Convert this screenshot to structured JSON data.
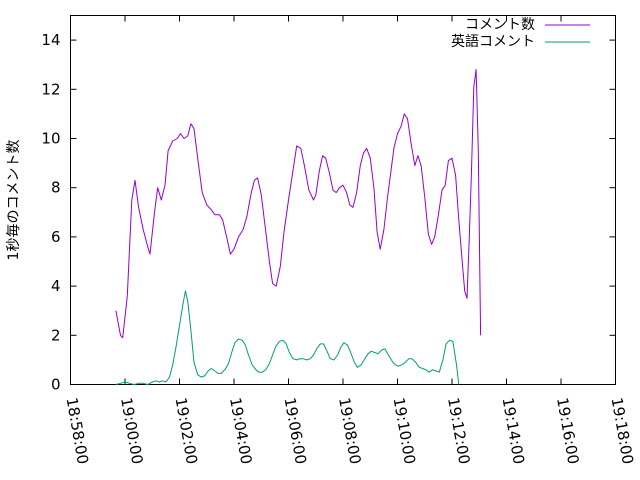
{
  "chart_data": {
    "type": "line",
    "title": "",
    "xlabel": "",
    "ylabel": "1秒毎のコメント数",
    "ylim": [
      0,
      15
    ],
    "y_ticks": [
      0,
      2,
      4,
      6,
      8,
      10,
      12,
      14
    ],
    "xlim": [
      "18:58:00",
      "19:18:00"
    ],
    "x_ticks": [
      "18:58:00",
      "19:00:00",
      "19:02:00",
      "19:04:00",
      "19:06:00",
      "19:08:00",
      "19:10:00",
      "19:12:00",
      "19:14:00",
      "19:16:00",
      "19:18:00"
    ],
    "grid": false,
    "legend_position": "top-right",
    "series": [
      {
        "name": "コメント数",
        "color": "#9400d3",
        "points": [
          [
            "18:59:40",
            3.0
          ],
          [
            "18:59:50",
            2.0
          ],
          [
            "18:59:55",
            1.9
          ],
          [
            "19:00:05",
            3.6
          ],
          [
            "19:00:15",
            7.5
          ],
          [
            "19:00:22",
            8.3
          ],
          [
            "19:00:30",
            7.2
          ],
          [
            "19:00:40",
            6.3
          ],
          [
            "19:00:50",
            5.6
          ],
          [
            "19:00:55",
            5.3
          ],
          [
            "19:01:05",
            7.0
          ],
          [
            "19:01:12",
            8.0
          ],
          [
            "19:01:20",
            7.5
          ],
          [
            "19:01:28",
            8.1
          ],
          [
            "19:01:35",
            9.5
          ],
          [
            "19:01:45",
            9.9
          ],
          [
            "19:01:55",
            10.0
          ],
          [
            "19:02:02",
            10.2
          ],
          [
            "19:02:10",
            10.0
          ],
          [
            "19:02:18",
            10.1
          ],
          [
            "19:02:25",
            10.6
          ],
          [
            "19:02:32",
            10.4
          ],
          [
            "19:02:40",
            9.2
          ],
          [
            "19:02:50",
            7.8
          ],
          [
            "19:03:00",
            7.3
          ],
          [
            "19:03:10",
            7.1
          ],
          [
            "19:03:18",
            6.9
          ],
          [
            "19:03:28",
            6.9
          ],
          [
            "19:03:35",
            6.7
          ],
          [
            "19:03:45",
            5.9
          ],
          [
            "19:03:52",
            5.3
          ],
          [
            "19:04:00",
            5.5
          ],
          [
            "19:04:10",
            6.0
          ],
          [
            "19:04:20",
            6.3
          ],
          [
            "19:04:28",
            6.8
          ],
          [
            "19:04:38",
            7.8
          ],
          [
            "19:04:45",
            8.3
          ],
          [
            "19:04:52",
            8.4
          ],
          [
            "19:05:00",
            7.7
          ],
          [
            "19:05:10",
            6.2
          ],
          [
            "19:05:18",
            5.0
          ],
          [
            "19:05:25",
            4.1
          ],
          [
            "19:05:33",
            4.0
          ],
          [
            "19:05:42",
            4.8
          ],
          [
            "19:05:50",
            6.2
          ],
          [
            "19:06:00",
            7.5
          ],
          [
            "19:06:10",
            8.7
          ],
          [
            "19:06:18",
            9.7
          ],
          [
            "19:06:27",
            9.6
          ],
          [
            "19:06:35",
            8.9
          ],
          [
            "19:06:45",
            7.9
          ],
          [
            "19:06:55",
            7.5
          ],
          [
            "19:07:00",
            7.7
          ],
          [
            "19:07:08",
            8.7
          ],
          [
            "19:07:15",
            9.3
          ],
          [
            "19:07:22",
            9.2
          ],
          [
            "19:07:30",
            8.6
          ],
          [
            "19:07:38",
            7.9
          ],
          [
            "19:07:45",
            7.8
          ],
          [
            "19:07:52",
            8.0
          ],
          [
            "19:08:00",
            8.1
          ],
          [
            "19:08:08",
            7.8
          ],
          [
            "19:08:15",
            7.3
          ],
          [
            "19:08:22",
            7.2
          ],
          [
            "19:08:30",
            7.8
          ],
          [
            "19:08:38",
            8.9
          ],
          [
            "19:08:45",
            9.4
          ],
          [
            "19:08:52",
            9.6
          ],
          [
            "19:09:00",
            9.2
          ],
          [
            "19:09:08",
            8.0
          ],
          [
            "19:09:15",
            6.2
          ],
          [
            "19:09:22",
            5.5
          ],
          [
            "19:09:30",
            6.3
          ],
          [
            "19:09:38",
            7.6
          ],
          [
            "19:09:45",
            8.6
          ],
          [
            "19:09:52",
            9.6
          ],
          [
            "19:10:00",
            10.2
          ],
          [
            "19:10:08",
            10.5
          ],
          [
            "19:10:15",
            11.0
          ],
          [
            "19:10:22",
            10.8
          ],
          [
            "19:10:30",
            9.8
          ],
          [
            "19:10:38",
            8.9
          ],
          [
            "19:10:45",
            9.3
          ],
          [
            "19:10:52",
            8.9
          ],
          [
            "19:11:00",
            7.6
          ],
          [
            "19:11:08",
            6.1
          ],
          [
            "19:11:15",
            5.7
          ],
          [
            "19:11:22",
            6.0
          ],
          [
            "19:11:30",
            6.9
          ],
          [
            "19:11:38",
            7.9
          ],
          [
            "19:11:45",
            8.1
          ],
          [
            "19:11:52",
            9.1
          ],
          [
            "19:12:00",
            9.2
          ],
          [
            "19:12:08",
            8.5
          ],
          [
            "19:12:15",
            6.7
          ],
          [
            "19:12:22",
            5.1
          ],
          [
            "19:12:28",
            3.8
          ],
          [
            "19:12:33",
            3.5
          ],
          [
            "19:12:38",
            6.0
          ],
          [
            "19:12:43",
            8.7
          ],
          [
            "19:12:48",
            12.1
          ],
          [
            "19:12:53",
            12.8
          ],
          [
            "19:12:58",
            9.5
          ],
          [
            "19:13:03",
            2.0
          ]
        ]
      },
      {
        "name": "英語コメント",
        "color": "#009e73",
        "points": [
          [
            "18:59:40",
            0.0
          ],
          [
            "18:59:50",
            0.05
          ],
          [
            "19:00:00",
            0.1
          ],
          [
            "19:00:10",
            0.05
          ],
          [
            "19:00:20",
            0.0
          ],
          [
            "19:00:30",
            0.05
          ],
          [
            "19:00:40",
            0.05
          ],
          [
            "19:00:50",
            0.0
          ],
          [
            "19:01:00",
            0.1
          ],
          [
            "19:01:08",
            0.15
          ],
          [
            "19:01:15",
            0.1
          ],
          [
            "19:01:22",
            0.15
          ],
          [
            "19:01:30",
            0.1
          ],
          [
            "19:01:38",
            0.3
          ],
          [
            "19:01:45",
            0.8
          ],
          [
            "19:01:52",
            1.5
          ],
          [
            "19:02:00",
            2.4
          ],
          [
            "19:02:08",
            3.3
          ],
          [
            "19:02:13",
            3.8
          ],
          [
            "19:02:18",
            3.4
          ],
          [
            "19:02:25",
            2.2
          ],
          [
            "19:02:32",
            0.9
          ],
          [
            "19:02:40",
            0.4
          ],
          [
            "19:02:48",
            0.3
          ],
          [
            "19:02:55",
            0.35
          ],
          [
            "19:03:03",
            0.55
          ],
          [
            "19:03:10",
            0.65
          ],
          [
            "19:03:18",
            0.55
          ],
          [
            "19:03:25",
            0.45
          ],
          [
            "19:03:32",
            0.45
          ],
          [
            "19:03:40",
            0.6
          ],
          [
            "19:03:48",
            0.85
          ],
          [
            "19:03:55",
            1.3
          ],
          [
            "19:04:02",
            1.7
          ],
          [
            "19:04:10",
            1.85
          ],
          [
            "19:04:18",
            1.8
          ],
          [
            "19:04:25",
            1.6
          ],
          [
            "19:04:32",
            1.2
          ],
          [
            "19:04:40",
            0.8
          ],
          [
            "19:04:48",
            0.6
          ],
          [
            "19:04:55",
            0.5
          ],
          [
            "19:05:02",
            0.5
          ],
          [
            "19:05:10",
            0.6
          ],
          [
            "19:05:18",
            0.85
          ],
          [
            "19:05:25",
            1.2
          ],
          [
            "19:05:32",
            1.55
          ],
          [
            "19:05:40",
            1.75
          ],
          [
            "19:05:48",
            1.8
          ],
          [
            "19:05:55",
            1.65
          ],
          [
            "19:06:02",
            1.3
          ],
          [
            "19:06:10",
            1.05
          ],
          [
            "19:06:18",
            1.0
          ],
          [
            "19:06:25",
            1.05
          ],
          [
            "19:06:32",
            1.05
          ],
          [
            "19:06:40",
            1.0
          ],
          [
            "19:06:48",
            1.05
          ],
          [
            "19:06:55",
            1.2
          ],
          [
            "19:07:02",
            1.45
          ],
          [
            "19:07:10",
            1.65
          ],
          [
            "19:07:17",
            1.65
          ],
          [
            "19:07:25",
            1.35
          ],
          [
            "19:07:32",
            1.05
          ],
          [
            "19:07:40",
            1.0
          ],
          [
            "19:07:48",
            1.2
          ],
          [
            "19:07:55",
            1.5
          ],
          [
            "19:08:02",
            1.7
          ],
          [
            "19:08:10",
            1.6
          ],
          [
            "19:08:17",
            1.3
          ],
          [
            "19:08:25",
            0.9
          ],
          [
            "19:08:32",
            0.7
          ],
          [
            "19:08:40",
            0.8
          ],
          [
            "19:08:48",
            1.05
          ],
          [
            "19:08:55",
            1.25
          ],
          [
            "19:09:02",
            1.35
          ],
          [
            "19:09:10",
            1.3
          ],
          [
            "19:09:17",
            1.25
          ],
          [
            "19:09:25",
            1.4
          ],
          [
            "19:09:32",
            1.45
          ],
          [
            "19:09:40",
            1.2
          ],
          [
            "19:09:48",
            0.95
          ],
          [
            "19:09:55",
            0.8
          ],
          [
            "19:10:02",
            0.75
          ],
          [
            "19:10:10",
            0.8
          ],
          [
            "19:10:17",
            0.9
          ],
          [
            "19:10:25",
            1.05
          ],
          [
            "19:10:32",
            1.05
          ],
          [
            "19:10:40",
            0.9
          ],
          [
            "19:10:48",
            0.7
          ],
          [
            "19:10:55",
            0.65
          ],
          [
            "19:11:02",
            0.6
          ],
          [
            "19:11:10",
            0.5
          ],
          [
            "19:11:17",
            0.6
          ],
          [
            "19:11:25",
            0.55
          ],
          [
            "19:11:32",
            0.5
          ],
          [
            "19:11:40",
            1.0
          ],
          [
            "19:11:47",
            1.65
          ],
          [
            "19:11:55",
            1.8
          ],
          [
            "19:12:02",
            1.75
          ],
          [
            "19:12:10",
            0.8
          ],
          [
            "19:12:15",
            0.0
          ]
        ]
      }
    ]
  }
}
